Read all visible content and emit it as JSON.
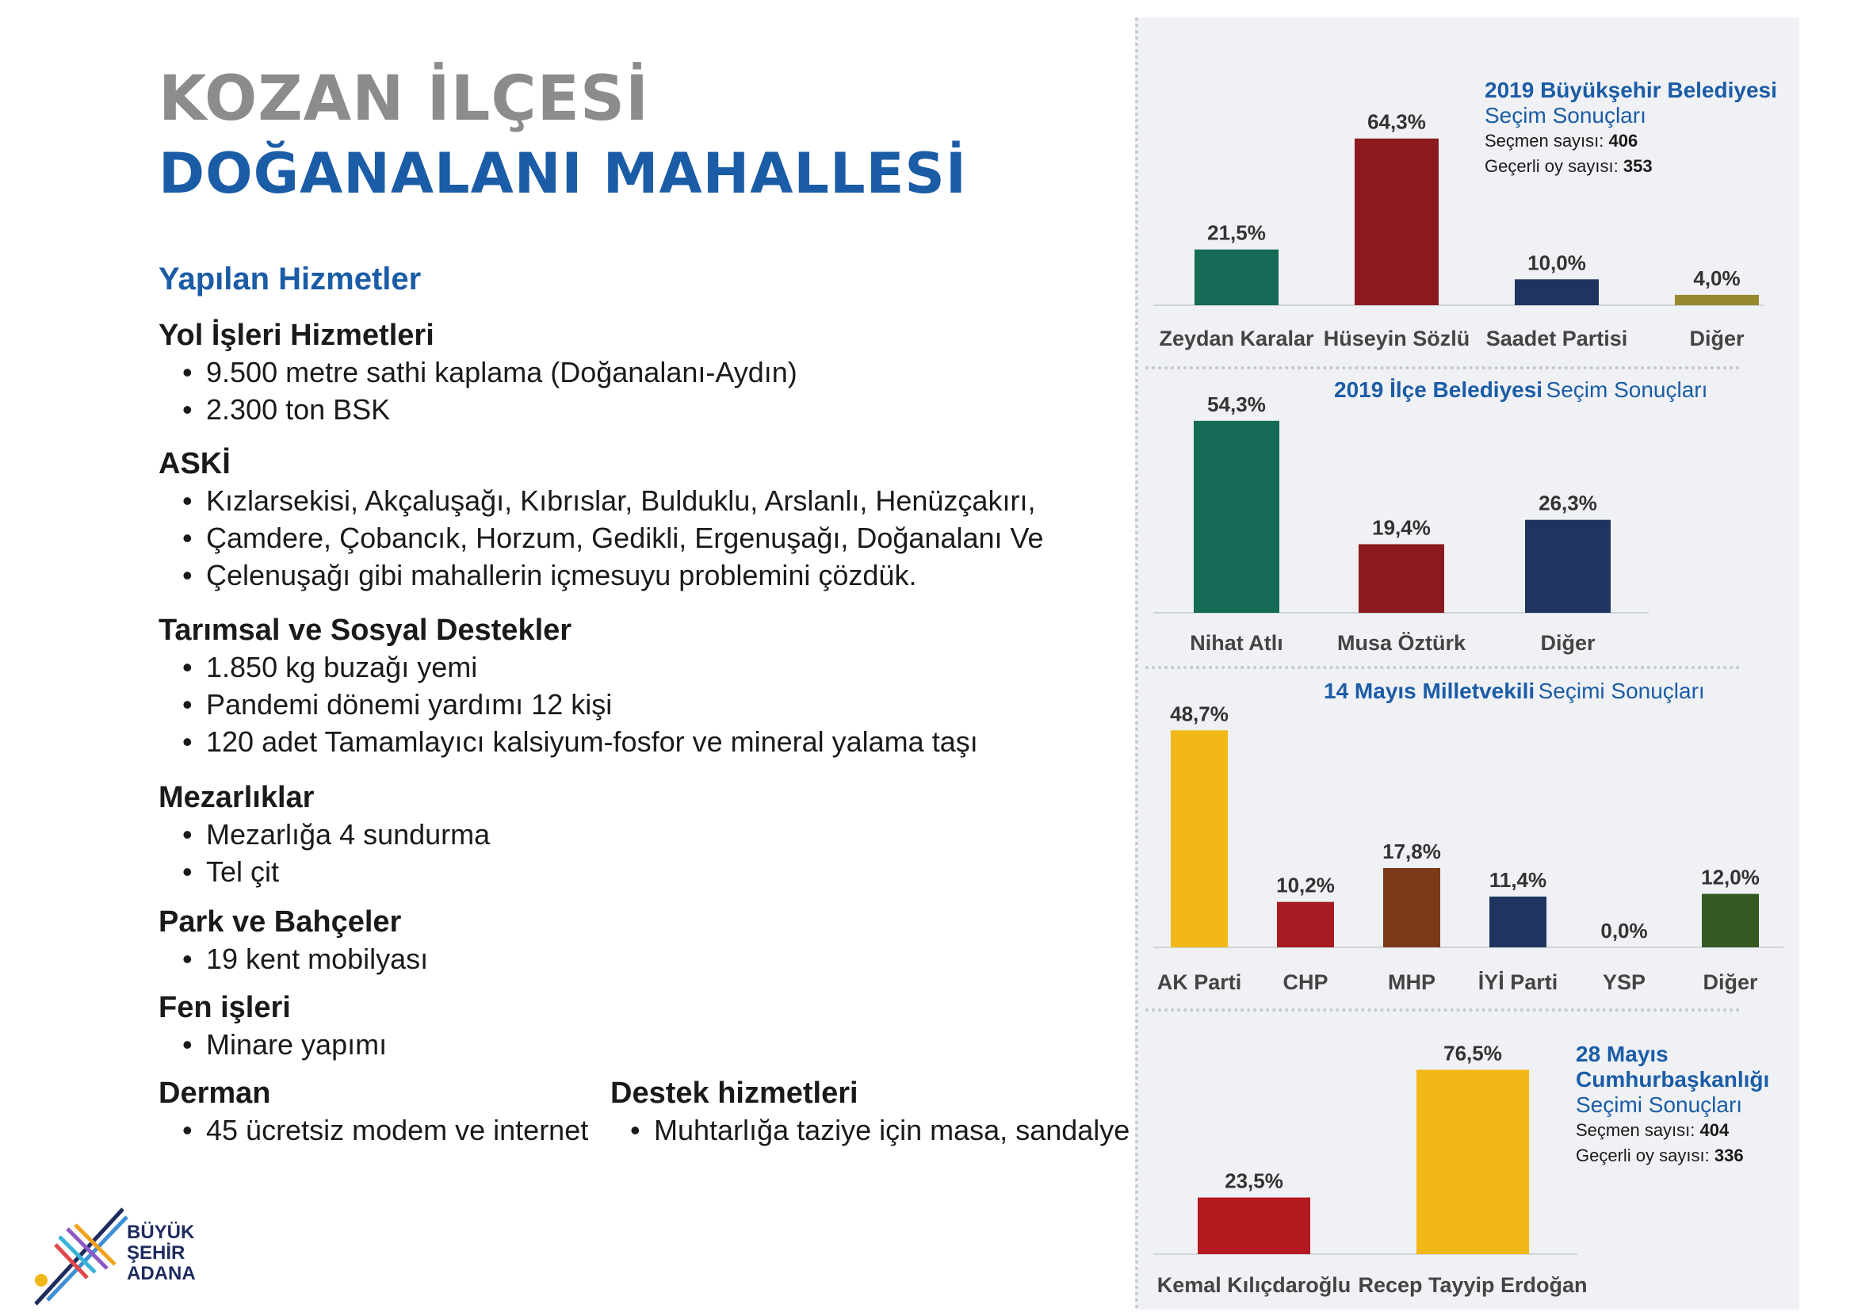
{
  "title": {
    "line1": "KOZAN İLÇESİ",
    "line2": "DOĞANALANI MAHALLESİ"
  },
  "services": {
    "heading": "Yapılan Hizmetler",
    "sections": [
      {
        "title": "Yol İşleri Hizmetleri",
        "items": [
          "9.500 metre sathi kaplama (Doğanalanı-Aydın)",
          "2.300 ton BSK"
        ]
      },
      {
        "title": "ASKİ",
        "items": [
          "Kızlarsekisi, Akçaluşağı, Kıbrıslar, Bulduklu, Arslanlı, Henüzçakırı,",
          "Çamdere, Çobancık, Horzum, Gedikli, Ergenuşağı, Doğanalanı Ve",
          "Çelenuşağı gibi mahallerin içmesuyu problemini çözdük."
        ]
      },
      {
        "title": "Tarımsal ve Sosyal Destekler",
        "items": [
          "1.850 kg buzağı yemi",
          "Pandemi dönemi yardımı 12 kişi",
          "120 adet Tamamlayıcı kalsiyum-fosfor ve mineral yalama taşı"
        ]
      },
      {
        "title": "Mezarlıklar",
        "items": [
          "Mezarlığa 4 sundurma",
          "Tel çit"
        ]
      },
      {
        "title": "Park ve Bahçeler",
        "items": [
          "19 kent mobilyası"
        ]
      },
      {
        "title": "Fen işleri",
        "items": [
          "Minare yapımı"
        ]
      },
      {
        "title": "Derman",
        "items": [
          "45 ücretsiz modem ve internet"
        ]
      },
      {
        "title": "Destek hizmetleri",
        "items": [
          "Muhtarlığa taziye için masa, sandalye"
        ]
      }
    ]
  },
  "logo": {
    "line1": "BÜYÜK",
    "line2": "ŞEHİR",
    "line3": "ADANA"
  },
  "chart_info": [
    {
      "title_bold": "2019 Büyükşehir Belediyesi",
      "title_regular": "Seçim Sonuçları",
      "voters_label": "Seçmen sayısı:",
      "voters": "406",
      "valid_label": "Geçerli oy sayısı:",
      "valid": "353"
    },
    {
      "title_bold": "2019 İlçe Belediyesi",
      "title_regular": "Seçim Sonuçları"
    },
    {
      "title_bold": "14 Mayıs Milletvekili",
      "title_regular": "Seçimi Sonuçları"
    },
    {
      "title_bold": "28 Mayıs Cumhurbaşkanlığı",
      "title_regular": "Seçimi Sonuçları",
      "voters_label": "Seçmen sayısı:",
      "voters": "404",
      "valid_label": "Geçerli oy sayısı:",
      "valid": "336"
    }
  ],
  "chart_data": [
    {
      "type": "bar",
      "title": "2019 Büyükşehir Belediyesi Seçim Sonuçları",
      "categories": [
        "Zeydan Karalar",
        "Hüseyin Sözlü",
        "Saadet Partisi",
        "Diğer"
      ],
      "values": [
        21.5,
        64.3,
        10.0,
        4.0
      ],
      "labels": [
        "21,5%",
        "64,3%",
        "10,0%",
        "4,0%"
      ],
      "colors": [
        "#156b56",
        "#8b1a1e",
        "#1f3560",
        "#98892e"
      ]
    },
    {
      "type": "bar",
      "title": "2019 İlçe Belediyesi Seçim Sonuçları",
      "categories": [
        "Nihat Atlı",
        "Musa Öztürk",
        "Diğer"
      ],
      "values": [
        54.3,
        19.4,
        26.3
      ],
      "labels": [
        "54,3%",
        "19,4%",
        "26,3%"
      ],
      "colors": [
        "#156b56",
        "#8b1a1e",
        "#1f3560"
      ]
    },
    {
      "type": "bar",
      "title": "14 Mayıs Milletvekili Seçimi Sonuçları",
      "categories": [
        "AK Parti",
        "CHP",
        "MHP",
        "İYİ Parti",
        "YSP",
        "Diğer"
      ],
      "values": [
        48.7,
        10.2,
        17.8,
        11.4,
        0.0,
        12.0
      ],
      "labels": [
        "48,7%",
        "10,2%",
        "17,8%",
        "11,4%",
        "0,0%",
        "12,0%"
      ],
      "colors": [
        "#f2b817",
        "#a61c22",
        "#7a3a17",
        "#1f3560",
        "#6b2a7a",
        "#345a22"
      ]
    },
    {
      "type": "bar",
      "title": "28 Mayıs Cumhurbaşkanlığı Seçimi Sonuçları",
      "categories": [
        "Kemal Kılıçdaroğlu",
        "Recep Tayyip Erdoğan"
      ],
      "values": [
        23.5,
        76.5
      ],
      "labels": [
        "23,5%",
        "76,5%"
      ],
      "colors": [
        "#b3191f",
        "#f2b817"
      ]
    }
  ]
}
